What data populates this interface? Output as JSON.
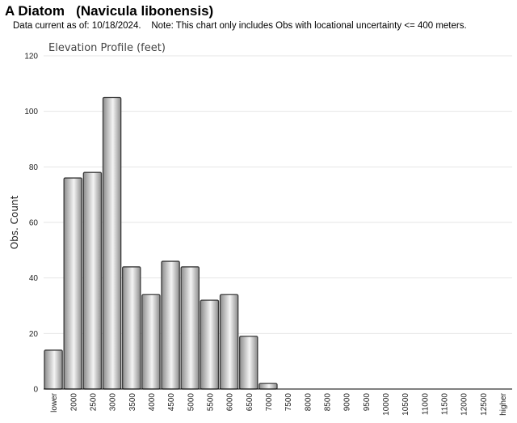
{
  "header": {
    "title": "A Diatom   (Navicula libonensis)",
    "subtitle": "Data current as of: 10/18/2024.    Note: This chart only includes Obs with locational uncertainty <= 400 meters."
  },
  "chart_data": {
    "type": "bar",
    "title": "Elevation Profile (feet)",
    "xlabel": "",
    "ylabel": "Obs. Count",
    "ylim": [
      0,
      120
    ],
    "yticks": [
      0,
      20,
      40,
      60,
      80,
      100,
      120
    ],
    "grid": true,
    "categories": [
      "lower",
      "2000",
      "2500",
      "3000",
      "3500",
      "4000",
      "4500",
      "5000",
      "5500",
      "6000",
      "6500",
      "7000",
      "7500",
      "8000",
      "8500",
      "9000",
      "9500",
      "10000",
      "10500",
      "11000",
      "11500",
      "12000",
      "12500",
      "higher"
    ],
    "values": [
      14,
      76,
      78,
      105,
      44,
      34,
      46,
      44,
      32,
      34,
      19,
      2,
      0,
      0,
      0,
      0,
      0,
      0,
      0,
      0,
      0,
      0,
      0,
      0
    ]
  },
  "colors": {
    "bar_dark": "#8c8c8c",
    "bar_light": "#f4f4f4",
    "bar_border": "#3a3a3a",
    "grid": "#e6e6e6"
  }
}
